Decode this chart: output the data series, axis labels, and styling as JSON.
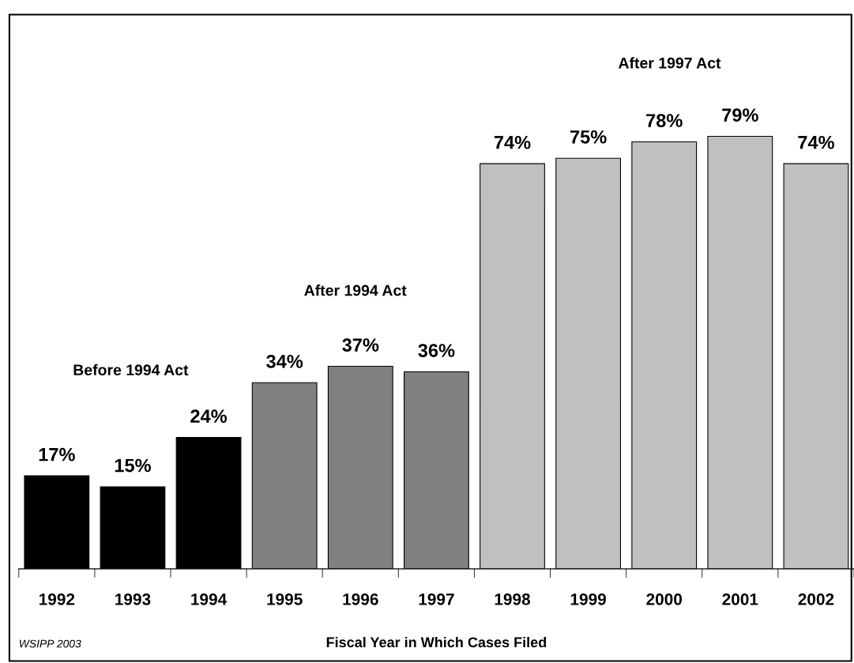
{
  "chart_data": {
    "type": "bar",
    "xlabel": "Fiscal Year in Which Cases Filed",
    "categories": [
      "1992",
      "1993",
      "1994",
      "1995",
      "1996",
      "1997",
      "1998",
      "1999",
      "2000",
      "2001",
      "2002"
    ],
    "values": [
      17,
      15,
      24,
      34,
      37,
      36,
      74,
      75,
      78,
      79,
      74
    ],
    "colors": [
      "#000000",
      "#000000",
      "#000000",
      "#808080",
      "#808080",
      "#808080",
      "#c0c0c0",
      "#c0c0c0",
      "#c0c0c0",
      "#c0c0c0",
      "#c0c0c0"
    ],
    "value_labels": [
      "17%",
      "15%",
      "24%",
      "34%",
      "37%",
      "36%",
      "74%",
      "75%",
      "78%",
      "79%",
      "74%"
    ],
    "tick_labels": "x",
    "grid": false,
    "legend": false,
    "annotations": [
      "Before 1994 Act",
      "After 1994 Act",
      "After 1997 Act",
      "WSIPP 2003"
    ]
  }
}
